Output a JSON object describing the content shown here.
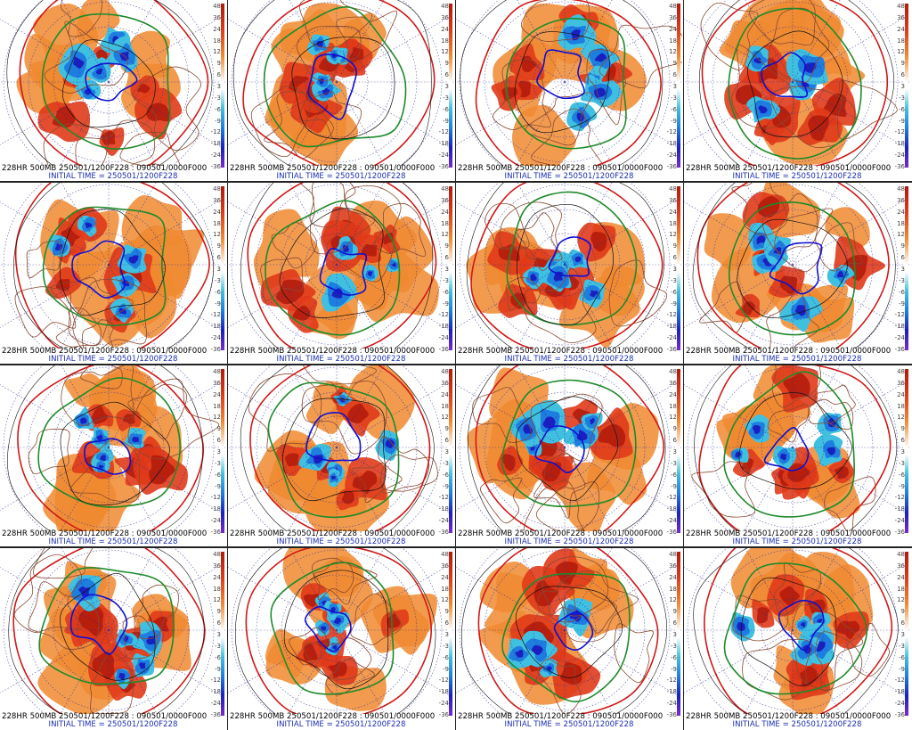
{
  "panels": [
    {
      "id": 1,
      "caption_top": "228HR 500MB 250501/1200F228 : 090501/0000F000",
      "caption_bottom": "INITIAL TIME = 250501/1200F228"
    },
    {
      "id": 2,
      "caption_top": "228HR 500MB 250501/1200F228 : 090501/0000F000",
      "caption_bottom": "INITIAL TIME = 250501/1200F228"
    },
    {
      "id": 3,
      "caption_top": "228HR 500MB 250501/1200F228 : 090501/0000F000",
      "caption_bottom": "INITIAL TIME = 250501/1200F228"
    },
    {
      "id": 4,
      "caption_top": "228HR 500MB 250501/1200F228 : 090501/0000F000",
      "caption_bottom": "INITIAL TIME = 250501/1200F228"
    },
    {
      "id": 5,
      "caption_top": "228HR 500MB 250501/1200F228 : 090501/0000F000",
      "caption_bottom": "INITIAL TIME = 250501/1200F228"
    },
    {
      "id": 6,
      "caption_top": "228HR 500MB 250501/1200F228 : 090501/0000F000",
      "caption_bottom": "INITIAL TIME = 250501/1200F228"
    },
    {
      "id": 7,
      "caption_top": "228HR 500MB 250501/1200F228 : 090501/0000F000",
      "caption_bottom": "INITIAL TIME = 250501/1200F228"
    },
    {
      "id": 8,
      "caption_top": "228HR 500MB 250501/1200F228 : 090501/0000F000",
      "caption_bottom": "INITIAL TIME = 250501/1200F228"
    },
    {
      "id": 9,
      "caption_top": "228HR 500MB 250501/1200F228 : 090501/0000F000",
      "caption_bottom": "INITIAL TIME = 250501/1200F228"
    },
    {
      "id": 10,
      "caption_top": "228HR 500MB 250501/1200F228 : 090501/0000F000",
      "caption_bottom": "INITIAL TIME = 250501/1200F228"
    },
    {
      "id": 11,
      "caption_top": "228HR 500MB 250501/1200F228 : 090501/0000F000",
      "caption_bottom": "INITIAL TIME = 250501/1200F228"
    },
    {
      "id": 12,
      "caption_top": "228HR 500MB 250501/1200F228 : 090501/0000F000",
      "caption_bottom": "INITIAL TIME = 250501/1200F228"
    },
    {
      "id": 13,
      "caption_top": "228HR 500MB 250501/1200F228 : 090501/0000F000",
      "caption_bottom": "INITIAL TIME = 250501/1200F228"
    },
    {
      "id": 14,
      "caption_top": "228HR 500MB 250501/1200F228 : 090501/0000F000",
      "caption_bottom": "INITIAL TIME = 250501/1200F228"
    },
    {
      "id": 15,
      "caption_top": "228HR 500MB 250501/1200F228 : 090501/0000F000",
      "caption_bottom": "INITIAL TIME = 250501/1200F228"
    },
    {
      "id": 16,
      "caption_top": "228HR 500MB 250501/1200F228 : 090501/0000F000",
      "caption_bottom": "INITIAL TIME = 250501/1200F228"
    }
  ],
  "scale_ticks": [
    "48",
    "36",
    "24",
    "18",
    "12",
    "9",
    "6",
    "3",
    "-3",
    "-6",
    "-9",
    "-12",
    "-18",
    "-24",
    "-36"
  ],
  "colors": {
    "positive_dark": "#b01a0a",
    "positive_mid": "#e03a1a",
    "positive_light": "#f08a30",
    "negative_light": "#40c0e0",
    "negative_mid": "#1e7ee0",
    "negative_dark": "#1a20c0",
    "contour_red": "#d01818",
    "contour_green": "#1e8a2a",
    "contour_blue": "#1010d0",
    "coastline": "#8a4a30",
    "gridline": "#2a2aa0"
  }
}
